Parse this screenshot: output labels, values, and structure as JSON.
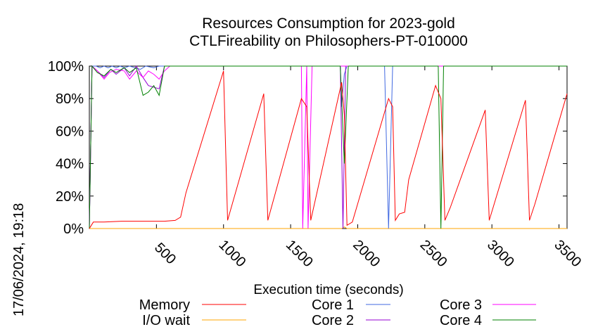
{
  "chart_data": {
    "type": "line",
    "title": "Resources Consumption for 2023-gold",
    "subtitle": "CTLFireability on Philosophers-PT-010000",
    "xlabel": "Execution time (seconds)",
    "ylabel": "",
    "xlim": [
      0,
      3560
    ],
    "ylim": [
      0,
      100
    ],
    "x_ticks": [
      "500",
      "1000",
      "1500",
      "2000",
      "2500",
      "3000",
      "3500"
    ],
    "x_tick_values": [
      500,
      1000,
      1500,
      2000,
      2500,
      3000,
      3500
    ],
    "y_ticks": [
      "0%",
      "20%",
      "40%",
      "60%",
      "80%",
      "100%"
    ],
    "y_tick_values": [
      0,
      20,
      40,
      60,
      80,
      100
    ],
    "legend_placement": "bottom",
    "timestamp": "17/06/2024, 19:18",
    "series": [
      {
        "name": "Memory",
        "color": "#ff0000",
        "points": [
          [
            0,
            0
          ],
          [
            30,
            4
          ],
          [
            110,
            4
          ],
          [
            240,
            4.5
          ],
          [
            400,
            4.5
          ],
          [
            560,
            4.5
          ],
          [
            640,
            5
          ],
          [
            680,
            7
          ],
          [
            720,
            22
          ],
          [
            1000,
            97
          ],
          [
            1030,
            5
          ],
          [
            1300,
            83
          ],
          [
            1330,
            5
          ],
          [
            1580,
            80
          ],
          [
            1620,
            75
          ],
          [
            1650,
            5
          ],
          [
            1880,
            90
          ],
          [
            1900,
            70
          ],
          [
            1920,
            2
          ],
          [
            1960,
            4
          ],
          [
            2230,
            80
          ],
          [
            2260,
            75
          ],
          [
            2280,
            5
          ],
          [
            2310,
            9
          ],
          [
            2350,
            10
          ],
          [
            2380,
            30
          ],
          [
            2580,
            88
          ],
          [
            2620,
            80
          ],
          [
            2650,
            5
          ],
          [
            2690,
            13
          ],
          [
            2950,
            73
          ],
          [
            2980,
            5
          ],
          [
            3250,
            79
          ],
          [
            3280,
            5
          ],
          [
            3320,
            15
          ],
          [
            3560,
            83
          ]
        ]
      },
      {
        "name": "I/O wait",
        "color": "#ffa500",
        "points": [
          [
            0,
            0
          ],
          [
            1880,
            0
          ],
          [
            1900,
            1
          ],
          [
            1920,
            0
          ],
          [
            3560,
            0
          ]
        ]
      },
      {
        "name": "Core 1",
        "color": "#4169e1",
        "points": [
          [
            0,
            0
          ],
          [
            20,
            100
          ],
          [
            50,
            100
          ],
          [
            80,
            99
          ],
          [
            110,
            100
          ],
          [
            140,
            99
          ],
          [
            170,
            100
          ],
          [
            200,
            99
          ],
          [
            230,
            100
          ],
          [
            260,
            99
          ],
          [
            300,
            100
          ],
          [
            340,
            99
          ],
          [
            380,
            98
          ],
          [
            420,
            100
          ],
          [
            480,
            99
          ],
          [
            520,
            100
          ],
          [
            560,
            100
          ],
          [
            1870,
            100
          ],
          [
            1880,
            75
          ],
          [
            1900,
            95
          ],
          [
            1920,
            100
          ],
          [
            2200,
            100
          ],
          [
            2230,
            0
          ],
          [
            2260,
            100
          ],
          [
            3560,
            100
          ]
        ]
      },
      {
        "name": "Core 2",
        "color": "#9400d3",
        "points": [
          [
            0,
            0
          ],
          [
            20,
            100
          ],
          [
            60,
            97
          ],
          [
            110,
            93
          ],
          [
            160,
            98
          ],
          [
            200,
            95
          ],
          [
            260,
            99
          ],
          [
            300,
            94
          ],
          [
            350,
            100
          ],
          [
            400,
            93
          ],
          [
            440,
            88
          ],
          [
            480,
            87
          ],
          [
            520,
            86
          ],
          [
            560,
            100
          ],
          [
            1870,
            100
          ],
          [
            1890,
            0
          ],
          [
            1910,
            100
          ],
          [
            3560,
            100
          ]
        ]
      },
      {
        "name": "Core 3",
        "color": "#ff00ff",
        "points": [
          [
            0,
            0
          ],
          [
            20,
            100
          ],
          [
            60,
            97
          ],
          [
            110,
            92
          ],
          [
            150,
            96
          ],
          [
            200,
            98
          ],
          [
            260,
            97
          ],
          [
            300,
            92
          ],
          [
            350,
            97
          ],
          [
            400,
            93
          ],
          [
            440,
            97
          ],
          [
            480,
            95
          ],
          [
            520,
            92
          ],
          [
            560,
            97
          ],
          [
            600,
            100
          ],
          [
            1580,
            100
          ],
          [
            1590,
            0
          ],
          [
            1620,
            100
          ],
          [
            1630,
            0
          ],
          [
            1660,
            100
          ],
          [
            1880,
            100
          ],
          [
            1920,
            100
          ],
          [
            2560,
            100
          ],
          [
            2600,
            100
          ],
          [
            3560,
            100
          ]
        ]
      },
      {
        "name": "Core 4",
        "color": "#008000",
        "points": [
          [
            0,
            0
          ],
          [
            20,
            100
          ],
          [
            60,
            96
          ],
          [
            110,
            94
          ],
          [
            160,
            98
          ],
          [
            200,
            96
          ],
          [
            260,
            99
          ],
          [
            300,
            96
          ],
          [
            350,
            99
          ],
          [
            400,
            82
          ],
          [
            440,
            84
          ],
          [
            480,
            88
          ],
          [
            520,
            82
          ],
          [
            560,
            100
          ],
          [
            1870,
            100
          ],
          [
            1900,
            40
          ],
          [
            1930,
            100
          ],
          [
            2600,
            100
          ],
          [
            2620,
            0
          ],
          [
            2640,
            100
          ],
          [
            3560,
            100
          ]
        ]
      }
    ]
  }
}
